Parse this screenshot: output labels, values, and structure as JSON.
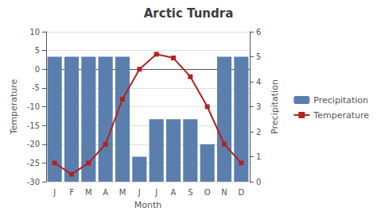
{
  "chart_data": {
    "type": "bar",
    "title": "Arctic Tundra",
    "xlabel": "Month",
    "ylabel": "Temperature",
    "y2label": "Precipitation",
    "categories": [
      "J",
      "F",
      "M",
      "A",
      "M",
      "J",
      "J",
      "A",
      "S",
      "O",
      "N",
      "D"
    ],
    "series": [
      {
        "name": "Precipitation",
        "type": "bar",
        "axis": "y2",
        "color": "#5b7fad",
        "values": [
          5.0,
          5.0,
          5.0,
          5.0,
          5.0,
          1.0,
          2.5,
          2.5,
          2.5,
          1.5,
          5.0,
          5.0
        ]
      },
      {
        "name": "Temperature",
        "type": "line",
        "color": "#b22222",
        "marker": "square",
        "values": [
          -25,
          -28,
          -25,
          -20,
          -8,
          0,
          4,
          3,
          -2,
          -10,
          -20,
          -25
        ]
      }
    ],
    "ylim": [
      -30,
      10
    ],
    "yticks": [
      -30,
      -25,
      -20,
      -15,
      -10,
      -5,
      0,
      5,
      10
    ],
    "y2lim": [
      0,
      6
    ],
    "y2ticks": [
      0,
      1,
      2,
      3,
      4,
      5,
      6
    ],
    "grid": true,
    "legend": "right"
  }
}
